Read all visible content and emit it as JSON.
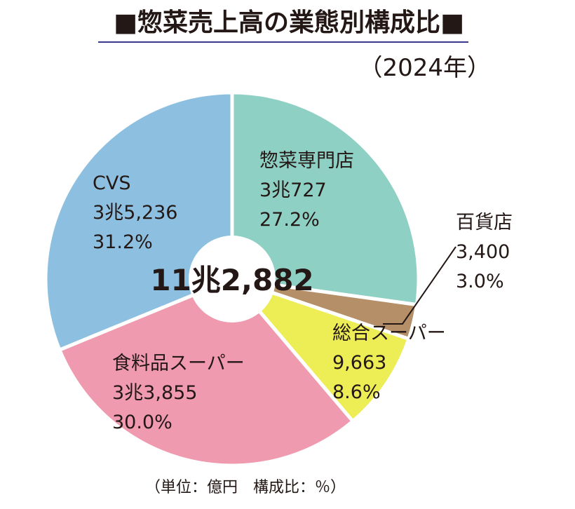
{
  "chart_data": {
    "type": "pie",
    "title": "■惣菜売上高の業態別構成比■",
    "subtitle": "（2024年）",
    "total_label": "11兆2,882",
    "footnote": "（単位：億円　構成比：％）",
    "slices": [
      {
        "name": "惣菜専門店",
        "amount": "3兆727",
        "pct_label": "27.2%",
        "value": 27.2,
        "color": "#8fd0c4"
      },
      {
        "name": "百貨店",
        "amount": "3,400",
        "pct_label": "3.0%",
        "value": 3.0,
        "color": "#b58f67"
      },
      {
        "name": "総合スーパー",
        "amount": "9,663",
        "pct_label": "8.6%",
        "value": 8.6,
        "color": "#eded56"
      },
      {
        "name": "食料品スーパー",
        "amount": "3兆3,855",
        "pct_label": "30.0%",
        "value": 30.0,
        "color": "#ef9aae"
      },
      {
        "name": "CVS",
        "amount": "3兆5,236",
        "pct_label": "31.2%",
        "value": 31.2,
        "color": "#8dc0e0"
      }
    ]
  }
}
